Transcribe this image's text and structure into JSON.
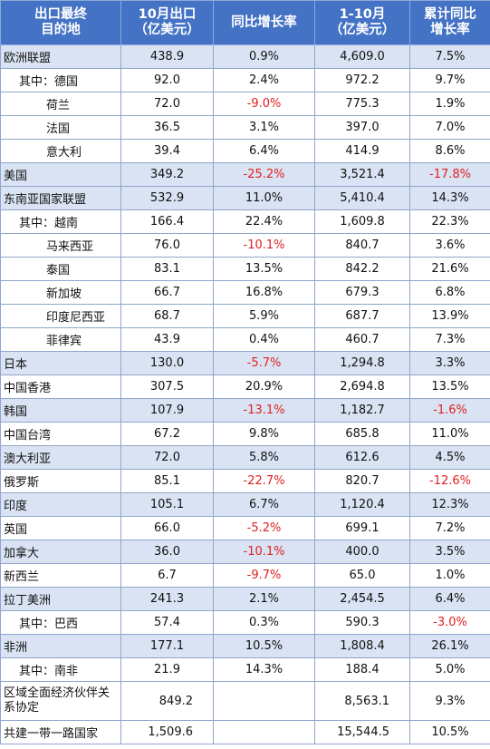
{
  "table": {
    "headers": [
      [
        "出口最终",
        "目的地"
      ],
      [
        "10月出口",
        "（亿美元）"
      ],
      [
        "同比增长率"
      ],
      [
        "1-10月",
        "（亿美元）"
      ],
      [
        "累计同比",
        "增长率"
      ]
    ],
    "rows": [
      {
        "name": "欧洲联盟",
        "oct": "438.9",
        "yoy": "0.9%",
        "ytd": "4,609.0",
        "cum": "7.5%"
      },
      {
        "name": "其中：德国",
        "oct": "92.0",
        "yoy": "2.4%",
        "ytd": "972.2",
        "cum": "9.7%"
      },
      {
        "name": "荷兰",
        "oct": "72.0",
        "yoy": "-9.0%",
        "ytd": "775.3",
        "cum": "1.9%"
      },
      {
        "name": "法国",
        "oct": "36.5",
        "yoy": "3.1%",
        "ytd": "397.0",
        "cum": "7.0%"
      },
      {
        "name": "意大利",
        "oct": "39.4",
        "yoy": "6.4%",
        "ytd": "414.9",
        "cum": "8.6%"
      },
      {
        "name": "美国",
        "oct": "349.2",
        "yoy": "-25.2%",
        "ytd": "3,521.4",
        "cum": "-17.8%"
      },
      {
        "name": "东南亚国家联盟",
        "oct": "532.9",
        "yoy": "11.0%",
        "ytd": "5,410.4",
        "cum": "14.3%"
      },
      {
        "name": "其中：越南",
        "oct": "166.4",
        "yoy": "22.4%",
        "ytd": "1,609.8",
        "cum": "22.3%"
      },
      {
        "name": "马来西亚",
        "oct": "76.0",
        "yoy": "-10.1%",
        "ytd": "840.7",
        "cum": "3.6%"
      },
      {
        "name": "泰国",
        "oct": "83.1",
        "yoy": "13.5%",
        "ytd": "842.2",
        "cum": "21.6%"
      },
      {
        "name": "新加坡",
        "oct": "66.7",
        "yoy": "16.8%",
        "ytd": "679.3",
        "cum": "6.8%"
      },
      {
        "name": "印度尼西亚",
        "oct": "68.7",
        "yoy": "5.9%",
        "ytd": "687.7",
        "cum": "13.9%"
      },
      {
        "name": "菲律宾",
        "oct": "43.9",
        "yoy": "0.4%",
        "ytd": "460.7",
        "cum": "7.3%"
      },
      {
        "name": "日本",
        "oct": "130.0",
        "yoy": "-5.7%",
        "ytd": "1,294.8",
        "cum": "3.3%"
      },
      {
        "name": "中国香港",
        "oct": "307.5",
        "yoy": "20.9%",
        "ytd": "2,694.8",
        "cum": "13.5%"
      },
      {
        "name": "韩国",
        "oct": "107.9",
        "yoy": "-13.1%",
        "ytd": "1,182.7",
        "cum": "-1.6%"
      },
      {
        "name": "中国台湾",
        "oct": "67.2",
        "yoy": "9.8%",
        "ytd": "685.8",
        "cum": "11.0%"
      },
      {
        "name": "澳大利亚",
        "oct": "72.0",
        "yoy": "5.8%",
        "ytd": "612.6",
        "cum": "4.5%"
      },
      {
        "name": "俄罗斯",
        "oct": "85.1",
        "yoy": "-22.7%",
        "ytd": "820.7",
        "cum": "-12.6%"
      },
      {
        "name": "印度",
        "oct": "105.1",
        "yoy": "6.7%",
        "ytd": "1,120.4",
        "cum": "12.3%"
      },
      {
        "name": "英国",
        "oct": "66.0",
        "yoy": "-5.2%",
        "ytd": "699.1",
        "cum": "7.2%"
      },
      {
        "name": "加拿大",
        "oct": "36.0",
        "yoy": "-10.1%",
        "ytd": "400.0",
        "cum": "3.5%"
      },
      {
        "name": "新西兰",
        "oct": "6.7",
        "yoy": "-9.7%",
        "ytd": "65.0",
        "cum": "1.0%"
      },
      {
        "name": "拉丁美洲",
        "oct": "241.3",
        "yoy": "2.1%",
        "ytd": "2,454.5",
        "cum": "6.4%"
      },
      {
        "name": "其中：巴西",
        "oct": "57.4",
        "yoy": "0.3%",
        "ytd": "590.3",
        "cum": "-3.0%"
      },
      {
        "name": "非洲",
        "oct": "177.1",
        "yoy": "10.5%",
        "ytd": "1,808.4",
        "cum": "26.1%"
      },
      {
        "name": "其中：南非",
        "oct": "21.9",
        "yoy": "14.3%",
        "ytd": "188.4",
        "cum": "5.0%"
      },
      {
        "name": "区域全面经济伙伴关系协定",
        "oct": "849.2",
        "yoy": "",
        "ytd": "8,563.1",
        "cum": "9.3%"
      },
      {
        "name": "共建一带一路国家",
        "oct": "1,509.6",
        "yoy": "",
        "ytd": "15,544.5",
        "cum": "10.5%"
      }
    ],
    "colors": {
      "header_bg": "#4472c4",
      "header_text": "#ffffff",
      "shaded_row": "#dae3f3",
      "negative_text": "#e02020",
      "grid": "#8fa6cc"
    }
  }
}
